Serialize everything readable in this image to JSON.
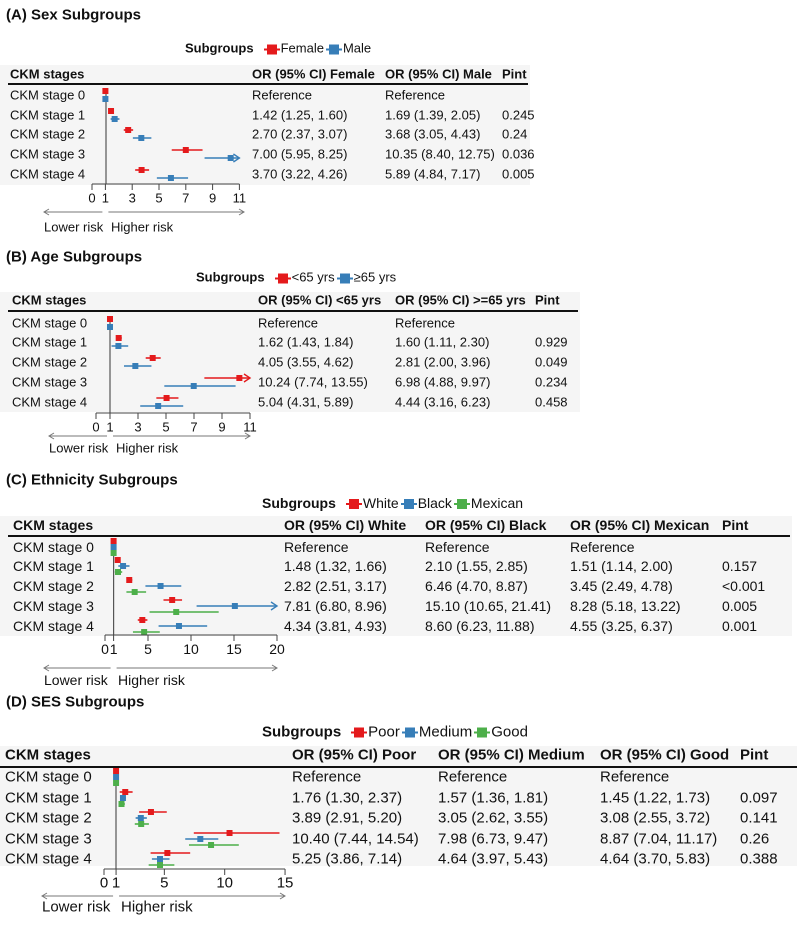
{
  "colors": {
    "series1": "#e41a1c",
    "series2": "#377eb8",
    "series3": "#4daf4a"
  },
  "chart_data": [
    {
      "type": "forest",
      "title": "(A) Sex Subgroups",
      "legend_title": "Subgroups",
      "row_header": "CKM stages",
      "columns": [
        "OR (95% CI) Female",
        "OR (95% CI) Male",
        "Pint"
      ],
      "row_labels": [
        "CKM stage 0",
        "CKM stage 1",
        "CKM stage 2",
        "CKM stage 3",
        "CKM stage 4"
      ],
      "cells": [
        [
          "Reference",
          "Reference",
          ""
        ],
        [
          "1.42 (1.25, 1.60)",
          "1.69 (1.39, 2.05)",
          "0.245"
        ],
        [
          "2.70 (2.37, 3.07)",
          "3.68 (3.05, 4.43)",
          "0.24"
        ],
        [
          "7.00 (5.95, 8.25)",
          "10.35 (8.40, 12.75)",
          "0.036"
        ],
        [
          "3.70 (3.22, 4.26)",
          "5.89 (4.84, 7.17)",
          "0.005"
        ]
      ],
      "series": [
        {
          "name": "Female",
          "or": [
            1,
            1.42,
            2.7,
            7.0,
            3.7
          ],
          "lo": [
            null,
            1.25,
            2.37,
            5.95,
            3.22
          ],
          "hi": [
            null,
            1.6,
            3.07,
            8.25,
            4.26
          ]
        },
        {
          "name": "Male",
          "or": [
            1,
            1.69,
            3.68,
            10.35,
            5.89
          ],
          "lo": [
            null,
            1.39,
            3.05,
            8.4,
            4.84
          ],
          "hi": [
            null,
            2.05,
            4.43,
            12.75,
            7.17
          ]
        }
      ],
      "xlim": [
        0,
        11
      ],
      "xticks": [
        "0",
        "1",
        "3",
        "5",
        "7",
        "9",
        "11"
      ],
      "arrow_left": "Lower risk",
      "arrow_right": "Higher risk"
    },
    {
      "type": "forest",
      "title": "(B) Age Subgroups",
      "legend_title": "Subgroups",
      "row_header": "CKM stages",
      "columns": [
        "OR (95% CI) <65 yrs",
        "OR (95% CI) >=65 yrs",
        "Pint"
      ],
      "row_labels": [
        "CKM stage 0",
        "CKM stage 1",
        "CKM stage 2",
        "CKM stage 3",
        "CKM stage 4"
      ],
      "cells": [
        [
          "Reference",
          "Reference",
          ""
        ],
        [
          "1.62 (1.43, 1.84)",
          "1.60 (1.11, 2.30)",
          "0.929"
        ],
        [
          "4.05 (3.55, 4.62)",
          "2.81 (2.00, 3.96)",
          "0.049"
        ],
        [
          "10.24 (7.74, 13.55)",
          "6.98 (4.88, 9.97)",
          "0.234"
        ],
        [
          "5.04 (4.31, 5.89)",
          "4.44 (3.16, 6.23)",
          "0.458"
        ]
      ],
      "series": [
        {
          "name": "<65 yrs",
          "or": [
            1,
            1.62,
            4.05,
            10.24,
            5.04
          ],
          "lo": [
            null,
            1.43,
            3.55,
            7.74,
            4.31
          ],
          "hi": [
            null,
            1.84,
            4.62,
            13.55,
            5.89
          ]
        },
        {
          "name": "≥65 yrs",
          "or": [
            1,
            1.6,
            2.81,
            6.98,
            4.44
          ],
          "lo": [
            null,
            1.11,
            2.0,
            4.88,
            3.16
          ],
          "hi": [
            null,
            2.3,
            3.96,
            9.97,
            6.23
          ]
        }
      ],
      "xlim": [
        0,
        11
      ],
      "xticks": [
        "0",
        "1",
        "3",
        "5",
        "7",
        "9",
        "11"
      ],
      "arrow_left": "Lower risk",
      "arrow_right": "Higher risk"
    },
    {
      "type": "forest",
      "title": "(C) Ethnicity Subgroups",
      "legend_title": "Subgroups",
      "row_header": "CKM stages",
      "columns": [
        "OR (95% CI) White",
        "OR (95% CI) Black",
        "OR (95% CI) Mexican",
        "Pint"
      ],
      "row_labels": [
        "CKM stage 0",
        "CKM stage 1",
        "CKM stage 2",
        "CKM stage 3",
        "CKM stage 4"
      ],
      "cells": [
        [
          "Reference",
          "Reference",
          "Reference",
          ""
        ],
        [
          "1.48 (1.32, 1.66)",
          "2.10 (1.55, 2.85)",
          "1.51 (1.14, 2.00)",
          "0.157"
        ],
        [
          "2.82 (2.51, 3.17)",
          "6.46 (4.70, 8.87)",
          "3.45 (2.49, 4.78)",
          "<0.001"
        ],
        [
          "7.81 (6.80, 8.96)",
          "15.10 (10.65, 21.41)",
          "8.28 (5.18, 13.22)",
          "0.005"
        ],
        [
          "4.34 (3.81, 4.93)",
          "8.60 (6.23, 11.88)",
          "4.55 (3.25, 6.37)",
          "0.001"
        ]
      ],
      "series": [
        {
          "name": "White",
          "or": [
            1,
            1.48,
            2.82,
            7.81,
            4.34
          ],
          "lo": [
            null,
            1.32,
            2.51,
            6.8,
            3.81
          ],
          "hi": [
            null,
            1.66,
            3.17,
            8.96,
            4.93
          ]
        },
        {
          "name": "Black",
          "or": [
            1,
            2.1,
            6.46,
            15.1,
            8.6
          ],
          "lo": [
            null,
            1.55,
            4.7,
            10.65,
            6.23
          ],
          "hi": [
            null,
            2.85,
            8.87,
            21.41,
            11.88
          ]
        },
        {
          "name": "Mexican",
          "or": [
            1,
            1.51,
            3.45,
            8.28,
            4.55
          ],
          "lo": [
            null,
            1.14,
            2.49,
            5.18,
            3.25
          ],
          "hi": [
            null,
            2.0,
            4.78,
            13.22,
            6.37
          ]
        }
      ],
      "xlim": [
        0,
        20
      ],
      "xticks": [
        "0",
        "1",
        "5",
        "10",
        "15",
        "20"
      ],
      "arrow_left": "Lower risk",
      "arrow_right": "Higher risk"
    },
    {
      "type": "forest",
      "title": "(D) SES Subgroups",
      "legend_title": "Subgroups",
      "row_header": "CKM stages",
      "columns": [
        "OR (95% CI) Poor",
        "OR (95% CI) Medium",
        "OR (95% CI) Good",
        "Pint"
      ],
      "row_labels": [
        "CKM stage 0",
        "CKM stage 1",
        "CKM stage 2",
        "CKM stage 3",
        "CKM stage 4"
      ],
      "cells": [
        [
          "Reference",
          "Reference",
          "Reference",
          ""
        ],
        [
          "1.76 (1.30, 2.37)",
          "1.57 (1.36, 1.81)",
          "1.45 (1.22, 1.73)",
          "0.097"
        ],
        [
          "3.89 (2.91, 5.20)",
          "3.05 (2.62, 3.55)",
          "3.08 (2.55, 3.72)",
          "0.141"
        ],
        [
          "10.40 (7.44, 14.54)",
          "7.98 (6.73, 9.47)",
          "8.87 (7.04, 11.17)",
          "0.26"
        ],
        [
          "5.25 (3.86, 7.14)",
          "4.64 (3.97, 5.43)",
          "4.64 (3.70, 5.83)",
          "0.388"
        ]
      ],
      "series": [
        {
          "name": "Poor",
          "or": [
            1,
            1.76,
            3.89,
            10.4,
            5.25
          ],
          "lo": [
            null,
            1.3,
            2.91,
            7.44,
            3.86
          ],
          "hi": [
            null,
            2.37,
            5.2,
            14.54,
            7.14
          ]
        },
        {
          "name": "Medium",
          "or": [
            1,
            1.57,
            3.05,
            7.98,
            4.64
          ],
          "lo": [
            null,
            1.36,
            2.62,
            6.73,
            3.97
          ],
          "hi": [
            null,
            1.81,
            3.55,
            9.47,
            5.43
          ]
        },
        {
          "name": "Good",
          "or": [
            1,
            1.45,
            3.08,
            8.87,
            4.64
          ],
          "lo": [
            null,
            1.22,
            2.55,
            7.04,
            3.7
          ],
          "hi": [
            null,
            1.73,
            3.72,
            11.17,
            5.83
          ]
        }
      ],
      "xlim": [
        0,
        15
      ],
      "xticks": [
        "0",
        "1",
        "5",
        "10",
        "15"
      ],
      "arrow_left": "Lower risk",
      "arrow_right": "Higher risk"
    }
  ]
}
